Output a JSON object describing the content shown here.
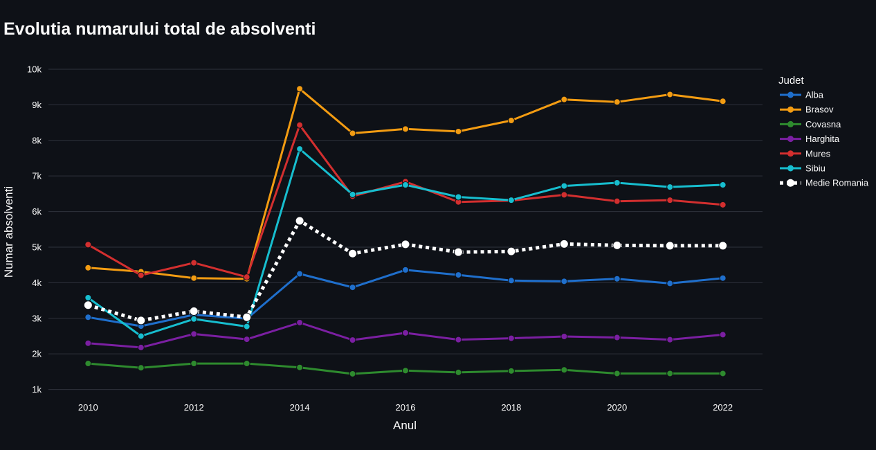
{
  "chart_data": {
    "type": "line",
    "title": "Evolutia numarului total de absolventi",
    "xlabel": "Anul",
    "ylabel": "Numar absolventi",
    "legend_title": "Judet",
    "legend_position": "right",
    "background": "#0e1117",
    "grid": true,
    "xlim": [
      2009.25,
      2022.75
    ],
    "ylim": [
      700,
      10350
    ],
    "x": [
      2010,
      2011,
      2012,
      2013,
      2014,
      2015,
      2016,
      2017,
      2018,
      2019,
      2020,
      2021,
      2022
    ],
    "x_ticks": [
      2010,
      2012,
      2014,
      2016,
      2018,
      2020,
      2022
    ],
    "y_ticks": [
      1000,
      2000,
      3000,
      4000,
      5000,
      6000,
      7000,
      8000,
      9000,
      10000
    ],
    "y_tick_labels": [
      "1k",
      "2k",
      "3k",
      "4k",
      "5k",
      "6k",
      "7k",
      "8k",
      "9k",
      "10k"
    ],
    "series": [
      {
        "name": "Alba",
        "color": "#1f6fcc",
        "dash": "solid",
        "values": [
          3030,
          2780,
          3100,
          2990,
          4250,
          3870,
          4360,
          4220,
          4060,
          4040,
          4110,
          3980,
          4130
        ]
      },
      {
        "name": "Brasov",
        "color": "#f39c12",
        "dash": "solid",
        "values": [
          4420,
          4310,
          4130,
          4110,
          9450,
          8200,
          8320,
          8250,
          8560,
          9150,
          9080,
          9290,
          9100
        ]
      },
      {
        "name": "Covasna",
        "color": "#2e8b2e",
        "dash": "solid",
        "values": [
          1730,
          1610,
          1730,
          1730,
          1620,
          1440,
          1530,
          1480,
          1520,
          1550,
          1450,
          1450,
          1450
        ]
      },
      {
        "name": "Harghita",
        "color": "#7b1fa2",
        "dash": "solid",
        "values": [
          2300,
          2180,
          2560,
          2410,
          2880,
          2390,
          2590,
          2400,
          2440,
          2490,
          2460,
          2400,
          2540
        ]
      },
      {
        "name": "Mures",
        "color": "#d32f2f",
        "dash": "solid",
        "values": [
          5070,
          4210,
          4560,
          4160,
          8430,
          6430,
          6840,
          6270,
          6310,
          6470,
          6290,
          6320,
          6190
        ]
      },
      {
        "name": "Sibiu",
        "color": "#17becf",
        "dash": "solid",
        "values": [
          3580,
          2500,
          2980,
          2770,
          7760,
          6480,
          6750,
          6410,
          6320,
          6720,
          6810,
          6690,
          6750
        ]
      },
      {
        "name": "Medie Romania",
        "color": "#ffffff",
        "dash": "dot",
        "values": [
          3370,
          2940,
          3200,
          3030,
          5740,
          4820,
          5080,
          4860,
          4880,
          5090,
          5050,
          5040,
          5040
        ]
      }
    ]
  }
}
